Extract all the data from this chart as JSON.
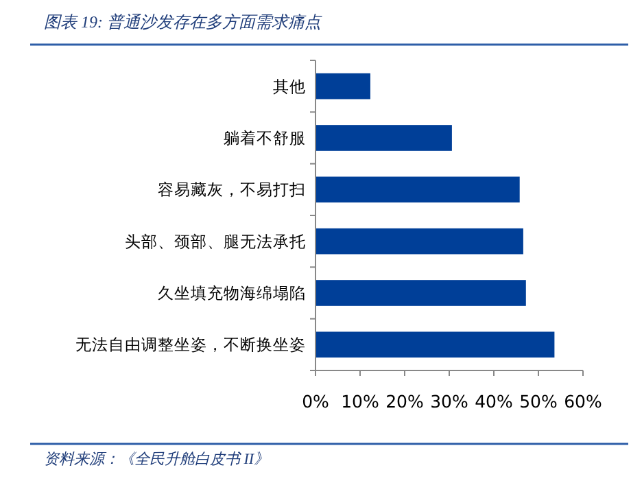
{
  "chart_data": {
    "type": "bar",
    "orientation": "horizontal",
    "title": "图表 19: 普通沙发存在多方面需求痛点",
    "categories": [
      "其他",
      "躺着不舒服",
      "容易藏灰，不易打扫",
      "头部、颈部、腿无法承托",
      "久坐填充物海绵塌陷",
      "无法自由调整坐姿，不断换坐姿"
    ],
    "values": [
      0.123,
      0.306,
      0.458,
      0.466,
      0.472,
      0.536
    ],
    "color": "#003f98",
    "xlim": [
      0,
      0.6
    ],
    "xticks": [
      {
        "value": 0,
        "label": "0%"
      },
      {
        "value": 0.1,
        "label": "10%"
      },
      {
        "value": 0.2,
        "label": "20%"
      },
      {
        "value": 0.3,
        "label": "30%"
      },
      {
        "value": 0.4,
        "label": "40%"
      },
      {
        "value": 0.5,
        "label": "50%"
      },
      {
        "value": 0.6,
        "label": "60%"
      }
    ],
    "annotations": [
      "资料来源：《全民升舱白皮书 II》"
    ]
  }
}
